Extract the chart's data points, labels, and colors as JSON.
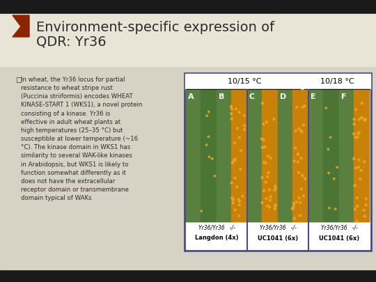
{
  "title_line1": "Environment-specific expression of",
  "title_line2": "QDR: Yr36",
  "bullet_text": "In wheat, the Yr36 locus for partial resistance to wheat stripe rust (Puccinia striiformis) encodes WHEAT KINASE-START 1 (WKS1), a novel protein consisting of a kinase. Yr36 is effective in adult wheat plants at high temperatures (25–35 °C) but susceptible at lower temperature (~16 °C). The kinase domain in WKS1 has similarity to several WAK-like kinases in Arabidopsis, but WKS1 is likely to function somewhat differently as it does not have the extracellular receptor domain or transmembrane domain typical of WAKs",
  "temp_label1": "10/15 °C",
  "temp_label2": "10/18 °C",
  "panel_labels": [
    "A",
    "B",
    "C",
    "D",
    "E",
    "F"
  ],
  "genotype_labels": [
    "Yr36/Yr36   -/-",
    "Yr36/Yr36   -/-",
    "Yr36/Yr36   -/-"
  ],
  "variety_labels": [
    "Langdon (4x)",
    "UC1041 (6x)",
    "UC1041 (6x)"
  ],
  "bg_color": "#d6d3c4",
  "title_color": "#2b2b2b",
  "text_color": "#2b2b2b",
  "arrow_color": "#8b2500",
  "panel_border_color": "#4a4a8a",
  "header_bg": "#ffffff"
}
